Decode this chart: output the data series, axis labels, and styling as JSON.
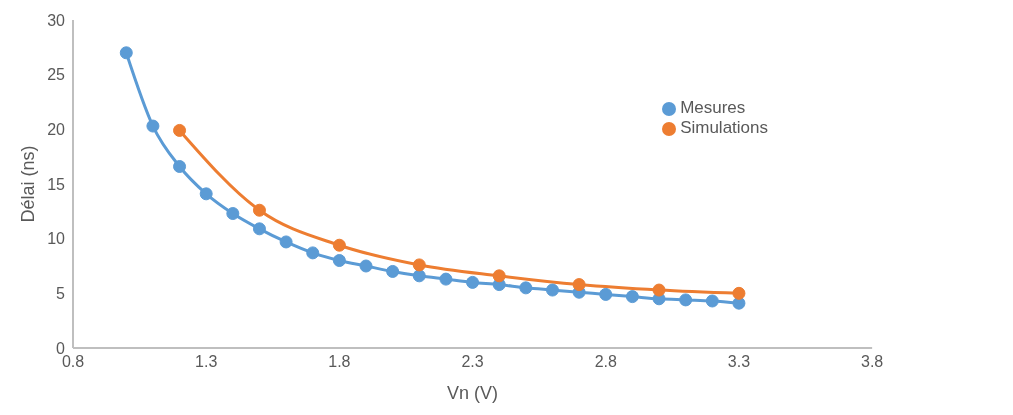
{
  "chart_data": {
    "type": "line",
    "xlabel": "Vn (V)",
    "ylabel": "Délai (ns)",
    "xlim": [
      0.8,
      3.8
    ],
    "xticks": [
      0.8,
      1.3,
      1.8,
      2.3,
      2.8,
      3.3,
      3.8
    ],
    "ylim": [
      0,
      30
    ],
    "yticks": [
      0,
      5,
      10,
      15,
      20,
      25,
      30
    ],
    "grid": false,
    "legend": "right",
    "marker": "circle",
    "line_style": "solid",
    "series": [
      {
        "name": "Mesures",
        "color": "#5b9bd5",
        "x": [
          1.0,
          1.1,
          1.2,
          1.3,
          1.4,
          1.5,
          1.6,
          1.7,
          1.8,
          1.9,
          2.0,
          2.1,
          2.2,
          2.3,
          2.4,
          2.5,
          2.6,
          2.7,
          2.8,
          2.9,
          3.0,
          3.1,
          3.2,
          3.3
        ],
        "values": [
          27.0,
          20.3,
          16.6,
          14.1,
          12.3,
          10.9,
          9.7,
          8.7,
          8.0,
          7.5,
          7.0,
          6.6,
          6.3,
          6.0,
          5.8,
          5.5,
          5.3,
          5.1,
          4.9,
          4.7,
          4.5,
          4.4,
          4.3,
          4.1
        ]
      },
      {
        "name": "Simulations",
        "color": "#ed7d31",
        "x": [
          1.2,
          1.5,
          1.8,
          2.1,
          2.4,
          2.7,
          3.0,
          3.3
        ],
        "values": [
          19.9,
          12.6,
          9.4,
          7.6,
          6.6,
          5.8,
          5.3,
          5.0
        ]
      }
    ]
  }
}
